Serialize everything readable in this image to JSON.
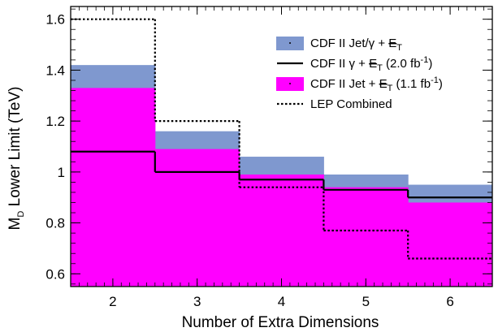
{
  "chart_data": {
    "type": "area",
    "xlabel": "Number of Extra Dimensions",
    "ylabel_main": "M",
    "ylabel_sub": "D",
    "ylabel_rest": " Lower Limit (TeV)",
    "x_categories": [
      2,
      3,
      4,
      5,
      6
    ],
    "xlim": [
      1.5,
      6.5
    ],
    "ylim": [
      0.55,
      1.65
    ],
    "xticks": [
      "2",
      "3",
      "4",
      "5",
      "6"
    ],
    "yticks": [
      "0.6",
      "0.8",
      "1",
      "1.2",
      "1.4",
      "1.6"
    ],
    "ytick_values": [
      0.6,
      0.8,
      1.0,
      1.2,
      1.4,
      1.6
    ],
    "grid": false,
    "legend_position": "top-right",
    "series": [
      {
        "name": "CDF II Jet/γ + E̸T",
        "legend_main": "CDF II Jet/γ + ",
        "legend_tail": "E",
        "legend_sub": "T",
        "legend_suffix": "",
        "style": "fill",
        "color": "#7f98cf",
        "values": [
          1.42,
          1.16,
          1.06,
          0.99,
          0.95
        ]
      },
      {
        "name": "CDF II Jet + E̸T (1.1 fb⁻¹)",
        "legend_main": "CDF II Jet + ",
        "legend_tail": "E",
        "legend_sub": "T",
        "legend_suffix": " (1.1 fb",
        "legend_sup": "-1",
        "legend_close": ")",
        "style": "fill",
        "color": "#ff00ff",
        "values": [
          1.33,
          1.09,
          0.99,
          0.94,
          0.88
        ]
      },
      {
        "name": "CDF II γ + E̸T (2.0 fb⁻¹)",
        "legend_main": "CDF II γ + ",
        "legend_tail": "E",
        "legend_sub": "T",
        "legend_suffix": " (2.0 fb",
        "legend_sup": "-1",
        "legend_close": ")",
        "style": "solid",
        "color": "#000000",
        "values": [
          1.08,
          1.0,
          0.97,
          0.93,
          0.9
        ]
      },
      {
        "name": "LEP Combined",
        "legend_main": "LEP Combined",
        "style": "dotted",
        "color": "#000000",
        "values": [
          1.6,
          1.2,
          0.94,
          0.77,
          0.66
        ]
      }
    ]
  }
}
